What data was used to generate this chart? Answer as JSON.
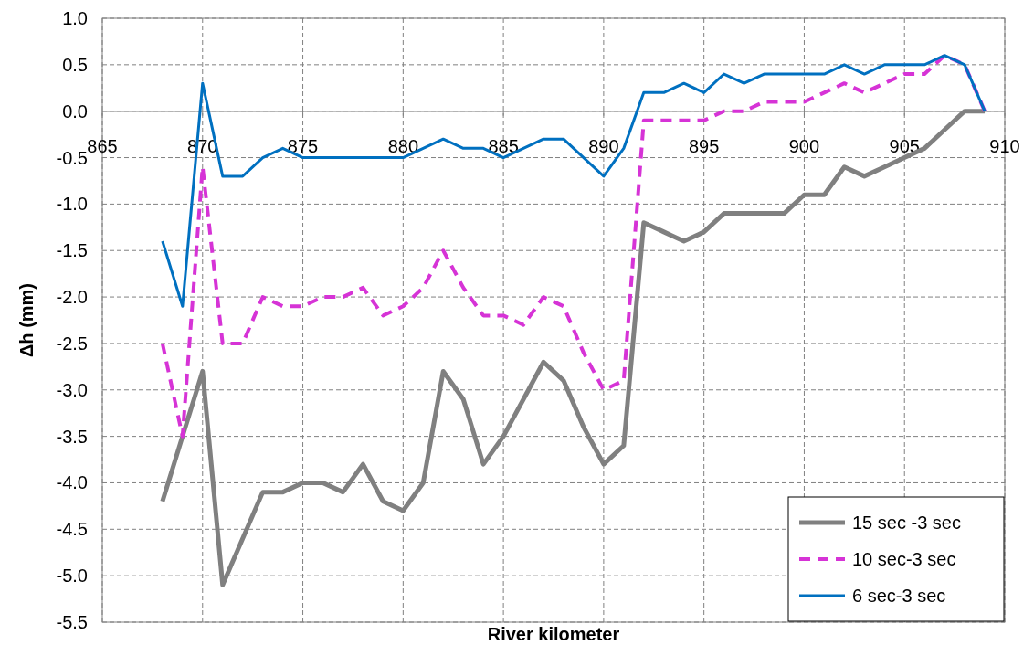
{
  "chart_data": {
    "type": "line",
    "xlabel": "River kilometer",
    "ylabel": "Δh (mm)",
    "x": [
      868,
      869,
      870,
      871,
      872,
      873,
      874,
      875,
      876,
      877,
      878,
      879,
      880,
      881,
      882,
      883,
      884,
      885,
      886,
      887,
      888,
      889,
      890,
      891,
      892,
      893,
      894,
      895,
      896,
      897,
      898,
      899,
      900,
      901,
      902,
      903,
      904,
      905,
      906,
      907,
      908,
      909
    ],
    "series": [
      {
        "name": "15 sec -3 sec",
        "color": "#808080",
        "line_style": "solid",
        "values": [
          -4.2,
          -3.5,
          -2.8,
          -5.1,
          -4.6,
          -4.1,
          -4.1,
          -4.0,
          -4.0,
          -4.1,
          -3.8,
          -4.2,
          -4.3,
          -4.0,
          -2.8,
          -3.1,
          -3.8,
          -3.5,
          -3.1,
          -2.7,
          -2.9,
          -3.4,
          -3.8,
          -3.6,
          -1.2,
          -1.3,
          -1.4,
          -1.3,
          -1.1,
          -1.1,
          -1.1,
          -1.1,
          -0.9,
          -0.9,
          -0.6,
          -0.7,
          -0.6,
          -0.5,
          -0.4,
          -0.2,
          0.0,
          0.0
        ]
      },
      {
        "name": "10 sec-3 sec",
        "color": "#d633d6",
        "line_style": "dashed",
        "values": [
          -2.5,
          -3.5,
          -0.6,
          -2.5,
          -2.5,
          -2.0,
          -2.1,
          -2.1,
          -2.0,
          -2.0,
          -1.9,
          -2.2,
          -2.1,
          -1.9,
          -1.5,
          -1.9,
          -2.2,
          -2.2,
          -2.3,
          -2.0,
          -2.1,
          -2.6,
          -3.0,
          -2.9,
          -0.1,
          -0.1,
          -0.1,
          -0.1,
          0.0,
          0.0,
          0.1,
          0.1,
          0.1,
          0.2,
          0.3,
          0.2,
          0.3,
          0.4,
          0.4,
          0.6,
          0.5,
          0.0
        ]
      },
      {
        "name": "6 sec-3 sec",
        "color": "#0070c0",
        "line_style": "solid",
        "values": [
          -1.4,
          -2.1,
          0.3,
          -0.7,
          -0.7,
          -0.5,
          -0.4,
          -0.5,
          -0.5,
          -0.5,
          -0.5,
          -0.5,
          -0.5,
          -0.4,
          -0.3,
          -0.4,
          -0.4,
          -0.5,
          -0.4,
          -0.3,
          -0.3,
          -0.5,
          -0.7,
          -0.4,
          0.2,
          0.2,
          0.3,
          0.2,
          0.4,
          0.3,
          0.4,
          0.4,
          0.4,
          0.4,
          0.5,
          0.4,
          0.5,
          0.5,
          0.5,
          0.6,
          0.5,
          0.0
        ]
      }
    ],
    "xlim": [
      865,
      910
    ],
    "xticks": [
      865,
      870,
      875,
      880,
      885,
      890,
      895,
      900,
      905,
      910
    ],
    "ylim": [
      -5.5,
      1.0
    ],
    "yticks": [
      {
        "value": -5.5,
        "label": "-5.5"
      },
      {
        "value": -5,
        "label": "-5.0"
      },
      {
        "value": -4.5,
        "label": "-4.5"
      },
      {
        "value": -4,
        "label": "-4.0"
      },
      {
        "value": -3.5,
        "label": "-3.5"
      },
      {
        "value": -3,
        "label": "-3.0"
      },
      {
        "value": -2.5,
        "label": "-2.5"
      },
      {
        "value": -2,
        "label": "-2.0"
      },
      {
        "value": -1.5,
        "label": "-1.5"
      },
      {
        "value": -1,
        "label": "-1.0"
      },
      {
        "value": -0.5,
        "label": "-0.5"
      },
      {
        "value": 0,
        "label": "0.0"
      },
      {
        "value": 0.5,
        "label": "0.5"
      },
      {
        "value": 1,
        "label": "1.0"
      }
    ],
    "grid": true,
    "legend": "bottom right",
    "marker": "none"
  }
}
